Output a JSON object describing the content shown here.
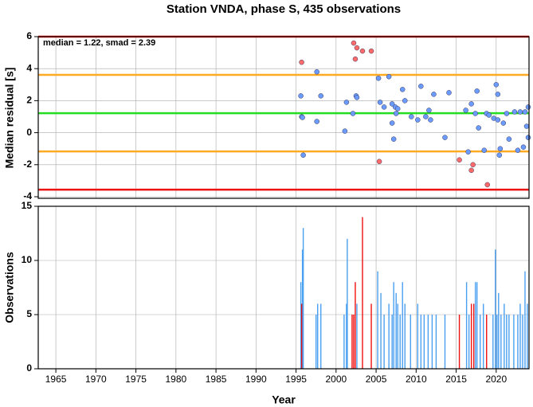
{
  "chart_data": [
    {
      "type": "scatter",
      "title": "Station VNDA, phase S, 435 observations",
      "ylabel": "Median residual [s]",
      "annotation": "median = 1.22, smad = 2.39",
      "xlim": [
        1962.8,
        2024.1
      ],
      "xticks": [
        1965,
        1970,
        1975,
        1980,
        1985,
        1990,
        1995,
        2000,
        2005,
        2010,
        2015,
        2020
      ],
      "ylim": [
        -4.1,
        6
      ],
      "yticks": [
        6,
        4,
        2,
        0,
        -2,
        -4
      ],
      "grid": true,
      "hlines": [
        {
          "value": 6,
          "color": "#ee1111"
        },
        {
          "value": 3.61,
          "color": "#ffaa22"
        },
        {
          "value": 1.22,
          "color": "#22dd22"
        },
        {
          "value": -1.17,
          "color": "#ffaa22"
        },
        {
          "value": -3.56,
          "color": "#ee1111"
        }
      ],
      "series": [
        {
          "color": "#6b9bff",
          "x": [
            1995.6,
            1995.7,
            1995.8,
            1995.9,
            1997.6,
            1997.6,
            1998.1,
            2001.1,
            2001.3,
            2002.1,
            2002.5,
            2002.6,
            2005.3,
            2005.5,
            2006.0,
            2006.6,
            2007.0,
            2007.0,
            2007.2,
            2007.4,
            2007.5,
            2007.7,
            2008.3,
            2008.6,
            2009.4,
            2010.2,
            2010.6,
            2011.2,
            2011.6,
            2011.8,
            2012.2,
            2013.6,
            2014.1,
            2016.2,
            2016.5,
            2016.9,
            2017.4,
            2017.6,
            2017.8,
            2018.5,
            2018.8,
            2019.1,
            2019.7,
            2020.0,
            2020.2,
            2020.2,
            2020.4,
            2020.5,
            2020.9,
            2021.3,
            2021.6,
            2022.3,
            2022.7,
            2023.0,
            2023.4,
            2023.6,
            2023.8,
            2024.0,
            2024.0
          ],
          "values": [
            2.3,
            1.0,
            0.95,
            -1.4,
            3.8,
            0.7,
            2.3,
            0.1,
            1.9,
            1.2,
            2.3,
            2.2,
            3.4,
            1.9,
            1.6,
            3.5,
            1.8,
            0.6,
            -0.4,
            1.6,
            1.2,
            1.5,
            2.7,
            2.0,
            1.0,
            0.8,
            2.9,
            1.0,
            1.4,
            0.8,
            2.4,
            -0.3,
            2.5,
            1.4,
            -1.2,
            1.8,
            1.2,
            2.6,
            0.3,
            -1.1,
            1.2,
            1.1,
            0.9,
            3.0,
            2.4,
            0.8,
            -1.4,
            -1.0,
            0.6,
            1.2,
            -0.4,
            1.3,
            -1.1,
            1.3,
            -0.9,
            1.3,
            0.4,
            1.6,
            -0.3
          ]
        },
        {
          "color": "#ff6b6b",
          "x": [
            1995.7,
            2002.2,
            2002.4,
            2002.6,
            2003.3,
            2004.4,
            2005.4,
            2015.4,
            2016.9,
            2017.1,
            2018.9
          ],
          "values": [
            4.4,
            5.6,
            4.6,
            5.3,
            5.1,
            5.1,
            -1.8,
            -1.7,
            -2.35,
            -2.0,
            -3.25
          ]
        }
      ]
    },
    {
      "type": "bar",
      "ylabel": "Observations",
      "xlabel": "Year",
      "xlim": [
        1962.8,
        2024.1
      ],
      "xticks": [
        1965,
        1970,
        1975,
        1980,
        1985,
        1990,
        1995,
        2000,
        2005,
        2010,
        2015,
        2020
      ],
      "ylim": [
        0,
        15
      ],
      "yticks": [
        15,
        10,
        5,
        0
      ],
      "grid": true,
      "series": [
        {
          "color": "#4aa0f0",
          "x": [
            1995.6,
            1995.8,
            1995.9,
            1997.5,
            1997.7,
            1998.1,
            2001.0,
            2001.3,
            2001.4,
            2002.6,
            2005.2,
            2005.6,
            2006.0,
            2006.6,
            2007.0,
            2007.2,
            2007.5,
            2007.7,
            2008.0,
            2008.3,
            2008.6,
            2009.3,
            2010.2,
            2010.6,
            2011.0,
            2011.5,
            2012.0,
            2012.5,
            2013.6,
            2016.3,
            2016.6,
            2017.4,
            2017.6,
            2018.0,
            2018.4,
            2019.6,
            2019.9,
            2020.1,
            2020.3,
            2020.6,
            2021.0,
            2021.3,
            2021.6,
            2022.2,
            2022.7,
            2023.0,
            2023.3,
            2023.6,
            2023.9
          ],
          "values": [
            8,
            11,
            13,
            5,
            6,
            6,
            5,
            6,
            12,
            6,
            9,
            7,
            5,
            6,
            5,
            8,
            7,
            6,
            5,
            8,
            6,
            5,
            6,
            5,
            5,
            5,
            5,
            5,
            5,
            8,
            5,
            8,
            8,
            5,
            6,
            5,
            11,
            5,
            7,
            5,
            6,
            5,
            5,
            5,
            5,
            6,
            5,
            9,
            6
          ]
        },
        {
          "color": "#ee1111",
          "x": [
            1995.7,
            2002.0,
            2002.2,
            2002.4,
            2003.3,
            2004.4,
            2015.4,
            2016.9,
            2017.2,
            2018.8
          ],
          "values": [
            6,
            5,
            5,
            8,
            14,
            6,
            5,
            6,
            6,
            5
          ]
        }
      ]
    }
  ]
}
